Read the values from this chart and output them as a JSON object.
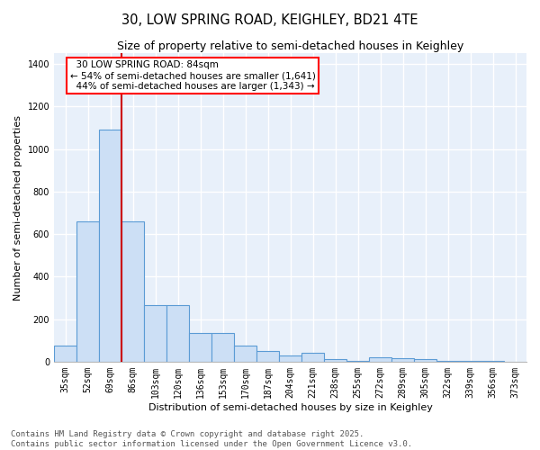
{
  "title1": "30, LOW SPRING ROAD, KEIGHLEY, BD21 4TE",
  "title2": "Size of property relative to semi-detached houses in Keighley",
  "xlabel": "Distribution of semi-detached houses by size in Keighley",
  "ylabel": "Number of semi-detached properties",
  "categories": [
    "35sqm",
    "52sqm",
    "69sqm",
    "86sqm",
    "103sqm",
    "120sqm",
    "136sqm",
    "153sqm",
    "170sqm",
    "187sqm",
    "204sqm",
    "221sqm",
    "238sqm",
    "255sqm",
    "272sqm",
    "289sqm",
    "305sqm",
    "322sqm",
    "339sqm",
    "356sqm",
    "373sqm"
  ],
  "values": [
    75,
    660,
    1090,
    660,
    265,
    265,
    135,
    135,
    75,
    50,
    30,
    40,
    10,
    5,
    20,
    15,
    10,
    5,
    5,
    5,
    0
  ],
  "bar_color": "#ccdff5",
  "bar_edge_color": "#5b9bd5",
  "vline_x_index": 2,
  "highlight_label": "30 LOW SPRING ROAD: 84sqm",
  "pct_smaller": "54%",
  "pct_larger": "44%",
  "count_smaller": "1,641",
  "count_larger": "1,343",
  "vline_color": "#cc0000",
  "background_color": "#e8f0fa",
  "grid_color": "#ffffff",
  "footer1": "Contains HM Land Registry data © Crown copyright and database right 2025.",
  "footer2": "Contains public sector information licensed under the Open Government Licence v3.0.",
  "ylim": [
    0,
    1450
  ],
  "title_fontsize": 10.5,
  "subtitle_fontsize": 9,
  "axis_label_fontsize": 8,
  "tick_fontsize": 7,
  "footer_fontsize": 6.5
}
